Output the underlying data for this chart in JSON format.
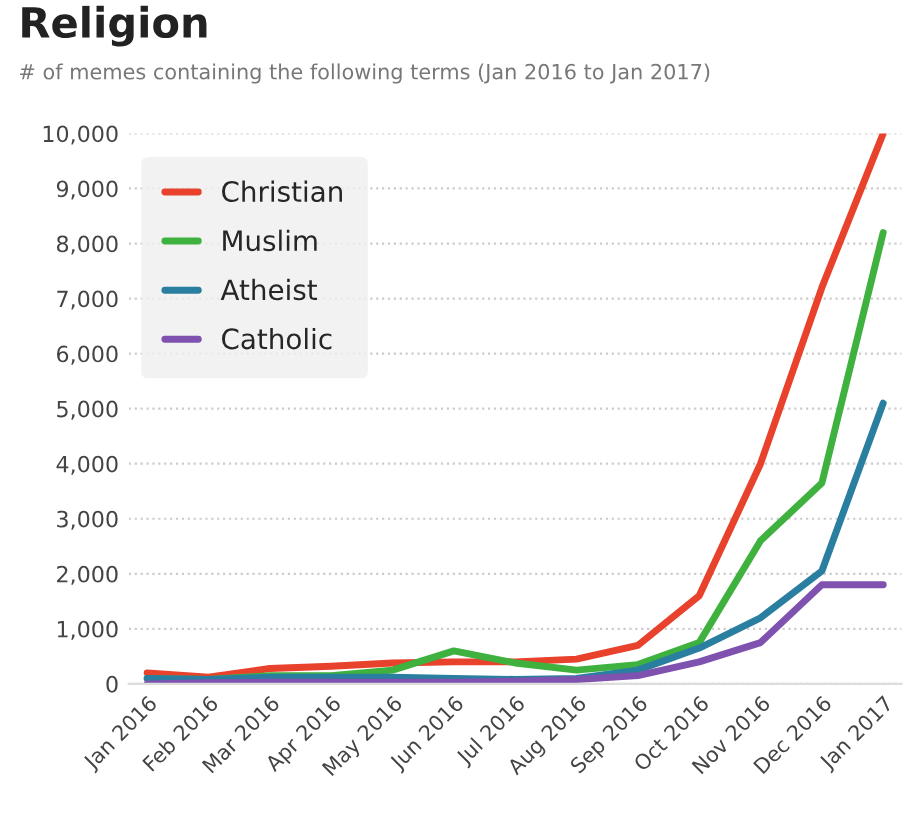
{
  "chart_data": {
    "type": "line",
    "title": "Religion",
    "subtitle": "# of memes containing the following terms (Jan 2016 to Jan 2017)",
    "categories": [
      "Jan 2016",
      "Feb 2016",
      "Mar 2016",
      "Apr 2016",
      "May 2016",
      "Jun 2016",
      "Jul 2016",
      "Aug 2016",
      "Sep 2016",
      "Oct 2016",
      "Nov 2016",
      "Dec 2016",
      "Jan 2017"
    ],
    "series": [
      {
        "name": "Christian",
        "color": "#e8412c",
        "values": [
          200,
          120,
          280,
          320,
          380,
          400,
          400,
          450,
          700,
          1600,
          4000,
          7200,
          10000
        ]
      },
      {
        "name": "Muslim",
        "color": "#3fb13f",
        "values": [
          100,
          80,
          150,
          150,
          250,
          600,
          380,
          250,
          350,
          750,
          2600,
          3650,
          8200
        ]
      },
      {
        "name": "Atheist",
        "color": "#2a7fa0",
        "values": [
          100,
          80,
          120,
          120,
          120,
          100,
          80,
          100,
          250,
          650,
          1200,
          2050,
          5100
        ]
      },
      {
        "name": "Catholic",
        "color": "#7f52b0",
        "values": [
          0,
          20,
          30,
          30,
          30,
          30,
          50,
          80,
          150,
          400,
          750,
          1800,
          1800
        ]
      }
    ],
    "ylim": [
      0,
      10000
    ],
    "yticks": [
      {
        "value": 0,
        "label": "0"
      },
      {
        "value": 1000,
        "label": "1,000"
      },
      {
        "value": 2000,
        "label": "2,000"
      },
      {
        "value": 3000,
        "label": "3,000"
      },
      {
        "value": 4000,
        "label": "4,000"
      },
      {
        "value": 5000,
        "label": "5,000"
      },
      {
        "value": 6000,
        "label": "6,000"
      },
      {
        "value": 7000,
        "label": "7,000"
      },
      {
        "value": 8000,
        "label": "8,000"
      },
      {
        "value": 9000,
        "label": "9,000"
      },
      {
        "value": 10000,
        "label": "10,000"
      }
    ],
    "grid": "y",
    "legend": "top left",
    "marker": "none",
    "line_style": "solid"
  }
}
